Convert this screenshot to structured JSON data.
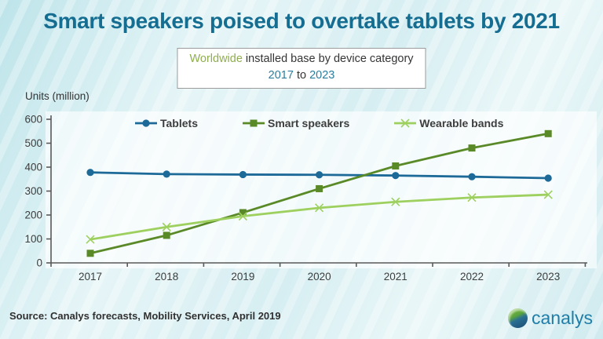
{
  "title": "Smart speakers poised to overtake tablets by 2021",
  "subtitle": {
    "highlight": "Worldwide",
    "rest": " installed base by device category",
    "range_start": "2017",
    "range_connector": " to ",
    "range_end": "2023",
    "highlight_color": "#8fae4e",
    "year_color": "#2a7d9c"
  },
  "units_label": "Units (million)",
  "chart_data": {
    "type": "line",
    "categories": [
      "2017",
      "2018",
      "2019",
      "2020",
      "2021",
      "2022",
      "2023"
    ],
    "series": [
      {
        "name": "Tablets",
        "values": [
          378,
          371,
          369,
          368,
          365,
          360,
          354
        ],
        "color": "#1d6a99",
        "marker": "circle"
      },
      {
        "name": "Smart speakers",
        "values": [
          40,
          115,
          210,
          310,
          405,
          480,
          540
        ],
        "color": "#5a8a28",
        "marker": "square"
      },
      {
        "name": "Wearable bands",
        "values": [
          98,
          150,
          195,
          230,
          255,
          273,
          285
        ],
        "color": "#9ed060",
        "marker": "x"
      }
    ],
    "title": "Worldwide installed base by device category 2017 to 2023",
    "xlabel": "",
    "ylabel": "Units (million)",
    "ylim": [
      0,
      600
    ],
    "y_ticks": [
      0,
      100,
      200,
      300,
      400,
      500,
      600
    ],
    "grid": false,
    "legend_position": "top-inside",
    "axis_color": "#595959",
    "tick_label_color": "#3d3d3d"
  },
  "source": "Source: Canalys forecasts, Mobility Services, April 2019",
  "logo": {
    "text": "canalys",
    "color": "#1f7ea8"
  }
}
